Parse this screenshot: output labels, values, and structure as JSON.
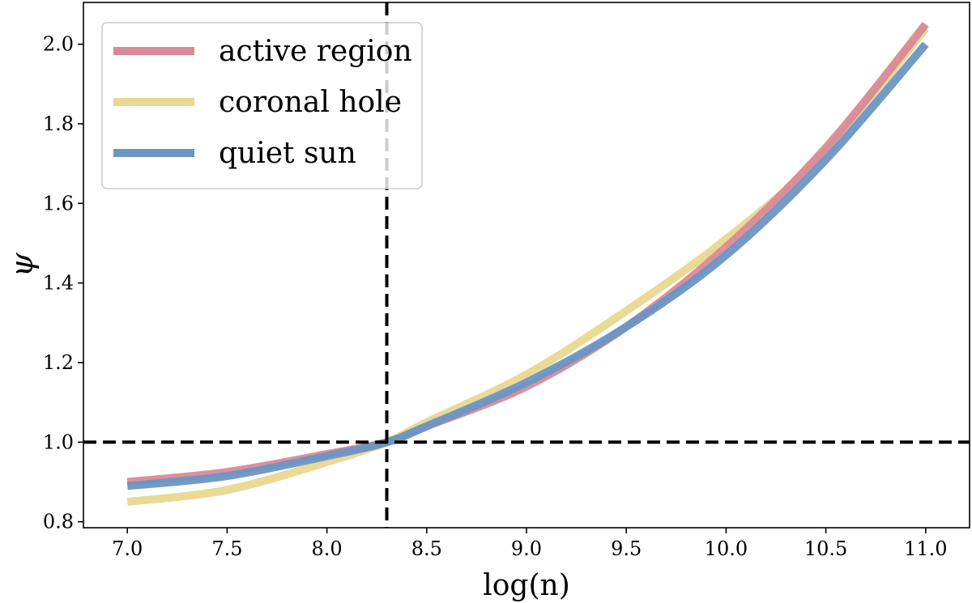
{
  "chart_data": {
    "type": "line",
    "title": "",
    "xlabel": "log(n)",
    "ylabel": "ψ",
    "xlim": [
      6.78,
      11.22
    ],
    "ylim": [
      0.785,
      2.105
    ],
    "xticks": [
      7.0,
      7.5,
      8.0,
      8.5,
      9.0,
      9.5,
      10.0,
      10.5,
      11.0
    ],
    "xtick_labels": [
      "7.0",
      "7.5",
      "8.0",
      "8.5",
      "9.0",
      "9.5",
      "10.0",
      "10.5",
      "11.0"
    ],
    "yticks": [
      0.8,
      1.0,
      1.2,
      1.4,
      1.6,
      1.8,
      2.0
    ],
    "ytick_labels": [
      "0.8",
      "1.0",
      "1.2",
      "1.4",
      "1.6",
      "1.8",
      "2.0"
    ],
    "grid": false,
    "legend_position": "top-left",
    "reference_lines": [
      {
        "orientation": "vertical",
        "value": 8.3,
        "style": "dashed",
        "color": "#000000"
      },
      {
        "orientation": "horizontal",
        "value": 1.0,
        "style": "dashed",
        "color": "#000000"
      }
    ],
    "series": [
      {
        "name": "active region",
        "color": "#d98a96",
        "x": [
          7.0,
          7.5,
          8.0,
          8.3,
          8.5,
          9.0,
          9.5,
          10.0,
          10.5,
          11.0
        ],
        "y": [
          0.9,
          0.925,
          0.97,
          1.0,
          1.04,
          1.14,
          1.29,
          1.49,
          1.74,
          2.05
        ]
      },
      {
        "name": "coronal hole",
        "color": "#e8d890",
        "x": [
          7.0,
          7.5,
          8.0,
          8.3,
          8.5,
          9.0,
          9.5,
          10.0,
          10.5,
          11.0
        ],
        "y": [
          0.85,
          0.88,
          0.95,
          1.0,
          1.05,
          1.17,
          1.33,
          1.51,
          1.73,
          2.04
        ]
      },
      {
        "name": "quiet sun",
        "color": "#6b96c4",
        "x": [
          7.0,
          7.5,
          8.0,
          8.3,
          8.5,
          9.0,
          9.5,
          10.0,
          10.5,
          11.0
        ],
        "y": [
          0.89,
          0.915,
          0.965,
          1.0,
          1.04,
          1.15,
          1.29,
          1.47,
          1.71,
          2.0
        ]
      }
    ]
  }
}
